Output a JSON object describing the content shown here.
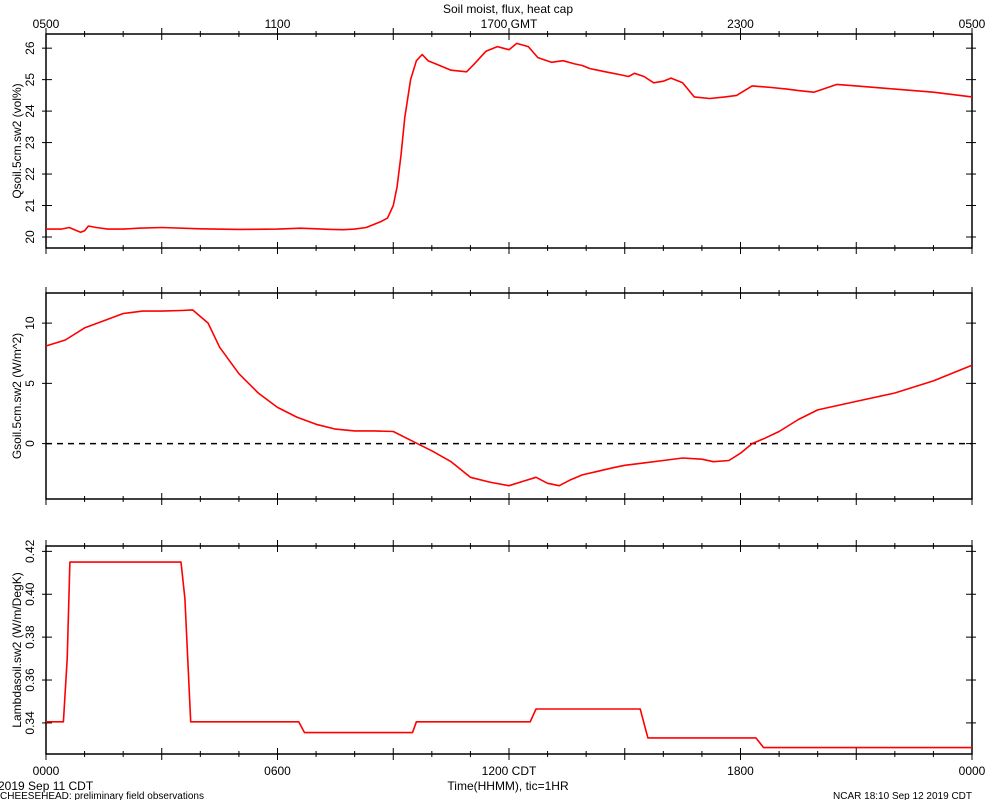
{
  "chart_data": {
    "type": "line",
    "title": "Soil moist, flux, heat cap",
    "top_axis": {
      "label_prefix": "",
      "tick_labels": [
        "0500",
        "1100",
        "1700 GMT",
        "2300",
        "0500"
      ]
    },
    "bottom_axis": {
      "xlabel": "Time(HHMM), tic=1HR",
      "tick_labels": [
        "0000",
        "0600",
        "1200 CDT",
        "1800",
        "0000"
      ],
      "xlim_hours": [
        0,
        24
      ]
    },
    "date_label": "2019 Sep 11 CDT",
    "footer_left": "CHEESEHEAD: preliminary field observations",
    "footer_right": "NCAR 18:10 Sep 12 2019 CDT",
    "line_color": "#ff0000",
    "panels": [
      {
        "ylabel": "Qsoil.5cm.sw2 (vol%)",
        "ylim": [
          19.65,
          26.45
        ],
        "yticks": [
          20,
          21,
          22,
          23,
          24,
          25,
          26
        ],
        "ytick_labels": [
          "20",
          "21",
          "22",
          "23",
          "24",
          "25",
          "26"
        ],
        "zero_line": false,
        "series": [
          {
            "x": [
              0,
              0.4,
              0.6,
              0.8,
              0.9,
              1.0,
              1.1,
              1.3,
              1.6,
              2.0,
              2.4,
              3.0,
              4.0,
              5.0,
              6.0,
              6.6,
              7.0,
              7.4,
              7.7,
              8.0,
              8.3,
              8.5,
              8.7,
              8.85,
              9.0,
              9.1,
              9.2,
              9.3,
              9.45,
              9.6,
              9.75,
              9.9,
              10.1,
              10.5,
              10.9,
              11.1,
              11.4,
              11.7,
              11.85,
              12.0,
              12.2,
              12.5,
              12.75,
              13.1,
              13.4,
              13.7,
              13.9,
              14.1,
              14.3,
              14.5,
              14.7,
              14.9,
              15.1,
              15.25,
              15.5,
              15.75,
              16.0,
              16.2,
              16.5,
              16.8,
              17.2,
              17.6,
              17.9,
              18.3,
              18.8,
              19.2,
              19.5,
              19.9,
              20.5,
              21.0,
              22.0,
              23.0,
              24.0
            ],
            "y": [
              20.25,
              20.25,
              20.3,
              20.2,
              20.15,
              20.2,
              20.35,
              20.3,
              20.25,
              20.25,
              20.28,
              20.3,
              20.26,
              20.24,
              20.25,
              20.28,
              20.26,
              20.24,
              20.23,
              20.25,
              20.3,
              20.4,
              20.5,
              20.6,
              21.0,
              21.6,
              22.6,
              23.8,
              25.0,
              25.6,
              25.8,
              25.6,
              25.5,
              25.3,
              25.25,
              25.5,
              25.9,
              26.05,
              26.0,
              25.95,
              26.15,
              26.05,
              25.7,
              25.55,
              25.6,
              25.5,
              25.45,
              25.35,
              25.3,
              25.25,
              25.2,
              25.15,
              25.1,
              25.2,
              25.1,
              24.9,
              24.95,
              25.05,
              24.9,
              24.45,
              24.4,
              24.45,
              24.5,
              24.8,
              24.75,
              24.7,
              24.65,
              24.6,
              24.85,
              24.8,
              24.7,
              24.6,
              24.45
            ]
          }
        ]
      },
      {
        "ylabel": "Gsoil.5cm.sw2 (W/m^2)",
        "ylim": [
          -4.6,
          12.5
        ],
        "yticks": [
          0,
          5,
          10
        ],
        "ytick_labels": [
          "0",
          "5",
          "10"
        ],
        "zero_line": true,
        "series": [
          {
            "x": [
              0,
              0.5,
              1.0,
              1.5,
              2.0,
              2.5,
              3.0,
              3.5,
              3.8,
              4.2,
              4.5,
              5.0,
              5.5,
              6.0,
              6.5,
              7.0,
              7.5,
              8.0,
              8.5,
              9.0,
              9.5,
              10.0,
              10.5,
              11.0,
              11.5,
              12.0,
              12.4,
              12.7,
              13.0,
              13.3,
              13.6,
              13.9,
              14.3,
              14.7,
              15.0,
              15.5,
              16.0,
              16.5,
              17.0,
              17.3,
              17.7,
              18.0,
              18.3,
              18.6,
              19.0,
              19.5,
              20.0,
              21.0,
              22.0,
              23.0,
              24.0
            ],
            "y": [
              8.1,
              8.6,
              9.6,
              10.2,
              10.8,
              11.0,
              11.0,
              11.05,
              11.1,
              10.0,
              8.0,
              5.8,
              4.2,
              3.0,
              2.2,
              1.6,
              1.2,
              1.05,
              1.05,
              1.0,
              0.2,
              -0.6,
              -1.5,
              -2.8,
              -3.2,
              -3.5,
              -3.1,
              -2.8,
              -3.3,
              -3.5,
              -3.0,
              -2.6,
              -2.3,
              -2.0,
              -1.8,
              -1.6,
              -1.4,
              -1.2,
              -1.3,
              -1.5,
              -1.4,
              -0.8,
              0.0,
              0.4,
              1.0,
              2.0,
              2.8,
              3.5,
              4.2,
              5.2,
              6.5
            ]
          }
        ]
      },
      {
        "ylabel": "Lambdasoil.sw2 (W/m/DegK)",
        "ylim": [
          0.3255,
          0.4225
        ],
        "yticks": [
          0.34,
          0.36,
          0.38,
          0.4,
          0.42
        ],
        "ytick_labels": [
          "0.34",
          "0.36",
          "0.38",
          "0.40",
          "0.42"
        ],
        "zero_line": false,
        "series": [
          {
            "x": [
              0,
              0.45,
              0.55,
              0.62,
              0.75,
              3.5,
              3.6,
              3.75,
              6.55,
              6.7,
              9.5,
              9.6,
              12.55,
              12.7,
              15.4,
              15.6,
              18.4,
              18.6,
              24.0
            ],
            "y": [
              0.3405,
              0.3405,
              0.37,
              0.415,
              0.415,
              0.415,
              0.398,
              0.3405,
              0.3405,
              0.3355,
              0.3355,
              0.3405,
              0.3405,
              0.3465,
              0.3465,
              0.333,
              0.333,
              0.3285,
              0.3285
            ]
          }
        ]
      }
    ]
  }
}
